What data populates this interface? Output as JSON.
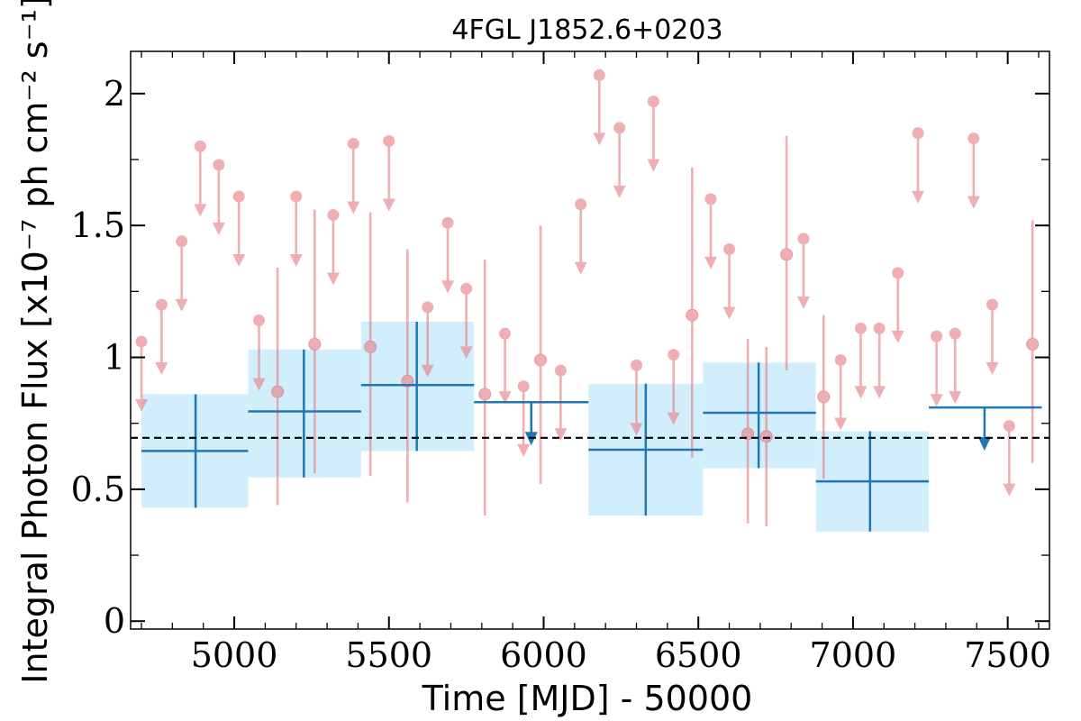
{
  "chart_data": {
    "type": "scatter",
    "title": "4FGL J1852.6+0203",
    "xlabel": "Time [MJD] - 50000",
    "ylabel": "Integral Photon Flux [x10⁻⁷ ph cm⁻² s⁻¹]",
    "xlim": [
      4665,
      7635
    ],
    "ylim": [
      -0.03,
      2.16
    ],
    "x_ticks": [
      5000,
      5500,
      6000,
      6500,
      7000,
      7500
    ],
    "x_tick_labels": [
      "5000",
      "5500",
      "6000",
      "6500",
      "7000",
      "7500"
    ],
    "y_ticks": [
      0,
      0.5,
      1,
      1.5,
      2
    ],
    "y_tick_labels": [
      "0",
      "0.5",
      "1",
      "1.5",
      "2"
    ],
    "mean_flux": 0.695,
    "grid": false,
    "colors": {
      "short_bins": "#e8858a",
      "long_bins": "#1f77b4",
      "long_bins_band": "#d0eefc",
      "mean_line": "#000000"
    },
    "series": [
      {
        "name": "",
        "kind": "short_bins_upper_limits",
        "points": [
          {
            "x": 4700,
            "y": 1.06
          },
          {
            "x": 4765,
            "y": 1.2
          },
          {
            "x": 4830,
            "y": 1.44
          },
          {
            "x": 4890,
            "y": 1.8
          },
          {
            "x": 4950,
            "y": 1.73
          },
          {
            "x": 5015,
            "y": 1.61
          },
          {
            "x": 5080,
            "y": 1.14
          },
          {
            "x": 5200,
            "y": 1.61
          },
          {
            "x": 5320,
            "y": 1.54
          },
          {
            "x": 5385,
            "y": 1.81
          },
          {
            "x": 5500,
            "y": 1.82
          },
          {
            "x": 5625,
            "y": 1.19
          },
          {
            "x": 5690,
            "y": 1.51
          },
          {
            "x": 5750,
            "y": 1.26
          },
          {
            "x": 5875,
            "y": 1.09
          },
          {
            "x": 5935,
            "y": 0.89
          },
          {
            "x": 6055,
            "y": 0.95
          },
          {
            "x": 6120,
            "y": 1.58
          },
          {
            "x": 6180,
            "y": 2.07
          },
          {
            "x": 6245,
            "y": 1.87
          },
          {
            "x": 6300,
            "y": 0.97
          },
          {
            "x": 6355,
            "y": 1.97
          },
          {
            "x": 6420,
            "y": 1.01
          },
          {
            "x": 6540,
            "y": 1.6
          },
          {
            "x": 6600,
            "y": 1.41
          },
          {
            "x": 6840,
            "y": 1.45
          },
          {
            "x": 6960,
            "y": 0.99
          },
          {
            "x": 7025,
            "y": 1.11
          },
          {
            "x": 7085,
            "y": 1.11
          },
          {
            "x": 7145,
            "y": 1.32
          },
          {
            "x": 7210,
            "y": 1.85
          },
          {
            "x": 7270,
            "y": 1.08
          },
          {
            "x": 7330,
            "y": 1.09
          },
          {
            "x": 7390,
            "y": 1.83
          },
          {
            "x": 7450,
            "y": 1.2
          },
          {
            "x": 7505,
            "y": 0.74
          }
        ]
      },
      {
        "name": "",
        "kind": "short_bins_detections",
        "points": [
          {
            "x": 5140,
            "y": 0.87,
            "lo": 0.44,
            "hi": 1.34
          },
          {
            "x": 5260,
            "y": 1.05,
            "lo": 0.56,
            "hi": 1.56
          },
          {
            "x": 5440,
            "y": 1.04,
            "lo": 0.55,
            "hi": 1.55
          },
          {
            "x": 5560,
            "y": 0.91,
            "lo": 0.45,
            "hi": 1.41
          },
          {
            "x": 5810,
            "y": 0.86,
            "lo": 0.4,
            "hi": 1.37
          },
          {
            "x": 5990,
            "y": 0.99,
            "lo": 0.52,
            "hi": 1.5
          },
          {
            "x": 6480,
            "y": 1.16,
            "lo": 0.62,
            "hi": 1.72
          },
          {
            "x": 6660,
            "y": 0.71,
            "lo": 0.37,
            "hi": 1.07
          },
          {
            "x": 6720,
            "y": 0.7,
            "lo": 0.36,
            "hi": 1.04
          },
          {
            "x": 6785,
            "y": 1.39,
            "lo": 0.95,
            "hi": 1.84
          },
          {
            "x": 6905,
            "y": 0.85,
            "lo": 0.54,
            "hi": 1.16
          },
          {
            "x": 7580,
            "y": 1.05,
            "lo": 0.6,
            "hi": 1.52
          }
        ]
      },
      {
        "name": "",
        "kind": "long_bins_detections",
        "points": [
          {
            "x": 4875,
            "x0": 4700,
            "x1": 5045,
            "y": 0.645,
            "lo": 0.43,
            "hi": 0.86
          },
          {
            "x": 5225,
            "x0": 5045,
            "x1": 5410,
            "y": 0.795,
            "lo": 0.545,
            "hi": 1.03
          },
          {
            "x": 5590,
            "x0": 5410,
            "x1": 5775,
            "y": 0.895,
            "lo": 0.645,
            "hi": 1.135
          },
          {
            "x": 6330,
            "x0": 6145,
            "x1": 6515,
            "y": 0.65,
            "lo": 0.4,
            "hi": 0.9
          },
          {
            "x": 6695,
            "x0": 6515,
            "x1": 6880,
            "y": 0.79,
            "lo": 0.58,
            "hi": 0.98
          },
          {
            "x": 7055,
            "x0": 6880,
            "x1": 7245,
            "y": 0.53,
            "lo": 0.34,
            "hi": 0.72
          }
        ]
      },
      {
        "name": "",
        "kind": "long_bins_upper_limits",
        "points": [
          {
            "x": 5960,
            "x0": 5775,
            "x1": 6145,
            "y": 0.83
          },
          {
            "x": 7425,
            "x0": 7245,
            "x1": 7610,
            "y": 0.81
          }
        ]
      }
    ]
  }
}
